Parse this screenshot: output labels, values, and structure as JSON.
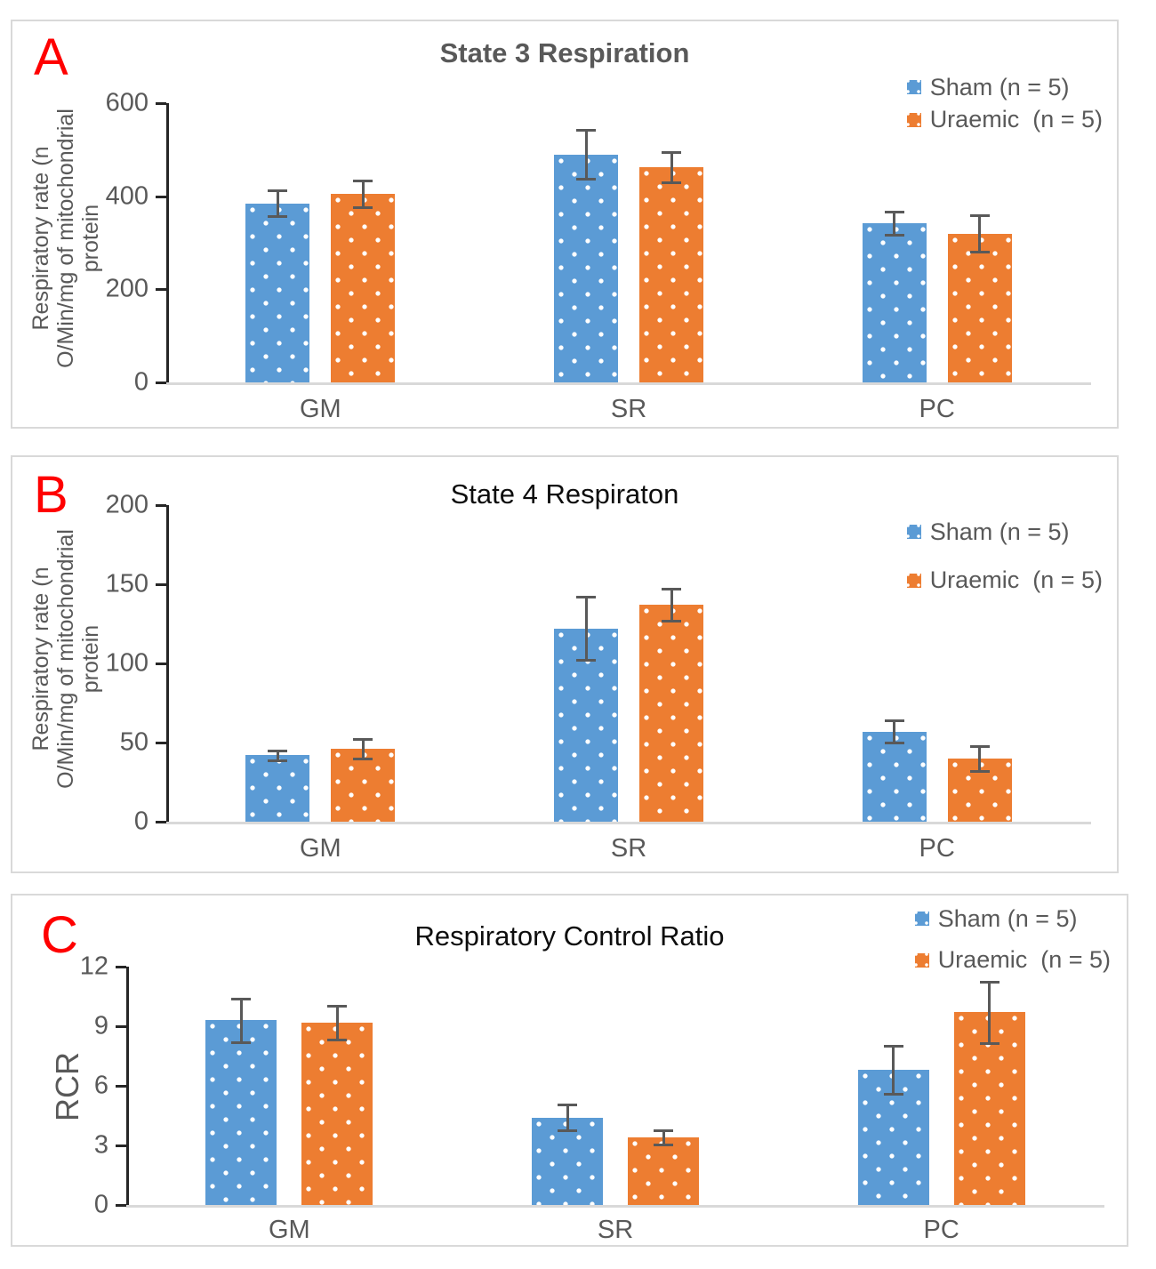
{
  "colors": {
    "sham": "#5B9BD5",
    "uraemic": "#ED7D31",
    "error_bar": "#595959",
    "axis_line": "#262626",
    "baseline": "#D9D9D9",
    "text_gray": "#595959",
    "panel_border": "#D9D9D9",
    "panel_letter_red": "#FF0000"
  },
  "legend": {
    "sham_label": "Sham (n = 5)",
    "uraemic_label": "Uraemic  (n = 5)"
  },
  "chart_data": [
    {
      "panel": "A",
      "type": "bar",
      "title": "State 3 Respiration",
      "ylabel": "Respiratory rate (n O/Min/mg of mitochondrial protein",
      "ylabel_lines": [
        "Respiratory rate (n",
        "O/Min/mg of mitochondrial",
        "protein"
      ],
      "categories": [
        "GM",
        "SR",
        "PC"
      ],
      "yticks": [
        0,
        200,
        400,
        600
      ],
      "ylim": [
        0,
        600
      ],
      "grid": false,
      "legend_position": "top-right",
      "series": [
        {
          "name": "Sham (n = 5)",
          "values": [
            385,
            490,
            342
          ],
          "errors": [
            28,
            52,
            25
          ]
        },
        {
          "name": "Uraemic  (n = 5)",
          "values": [
            405,
            462,
            320
          ],
          "errors": [
            28,
            32,
            40
          ]
        }
      ]
    },
    {
      "panel": "B",
      "type": "bar",
      "title": "State 4 Respiraton",
      "ylabel": "Respiratory rate (n O/Min/mg of mitochondrial protein",
      "ylabel_lines": [
        "Respiratory rate (n",
        "O/Min/mg of mitochondrial",
        "protein"
      ],
      "categories": [
        "GM",
        "SR",
        "PC"
      ],
      "yticks": [
        0,
        50,
        100,
        150,
        200
      ],
      "ylim": [
        0,
        200
      ],
      "grid": false,
      "legend_position": "top-right",
      "series": [
        {
          "name": "Sham (n = 5)",
          "values": [
            42,
            122,
            57
          ],
          "errors": [
            3,
            20,
            7
          ]
        },
        {
          "name": "Uraemic  (n = 5)",
          "values": [
            46,
            137,
            40
          ],
          "errors": [
            6,
            10,
            8
          ]
        }
      ]
    },
    {
      "panel": "C",
      "type": "bar",
      "title": "Respiratory Control Ratio",
      "ylabel": "RCR",
      "categories": [
        "GM",
        "SR",
        "PC"
      ],
      "yticks": [
        0,
        3,
        6,
        9,
        12
      ],
      "ylim": [
        0,
        12
      ],
      "grid": false,
      "legend_position": "top-right",
      "series": [
        {
          "name": "Sham (n = 5)",
          "values": [
            9.3,
            4.4,
            6.8
          ],
          "errors": [
            1.1,
            0.65,
            1.2
          ]
        },
        {
          "name": "Uraemic  (n = 5)",
          "values": [
            9.2,
            3.4,
            9.7
          ],
          "errors": [
            0.85,
            0.35,
            1.55
          ]
        }
      ]
    }
  ]
}
